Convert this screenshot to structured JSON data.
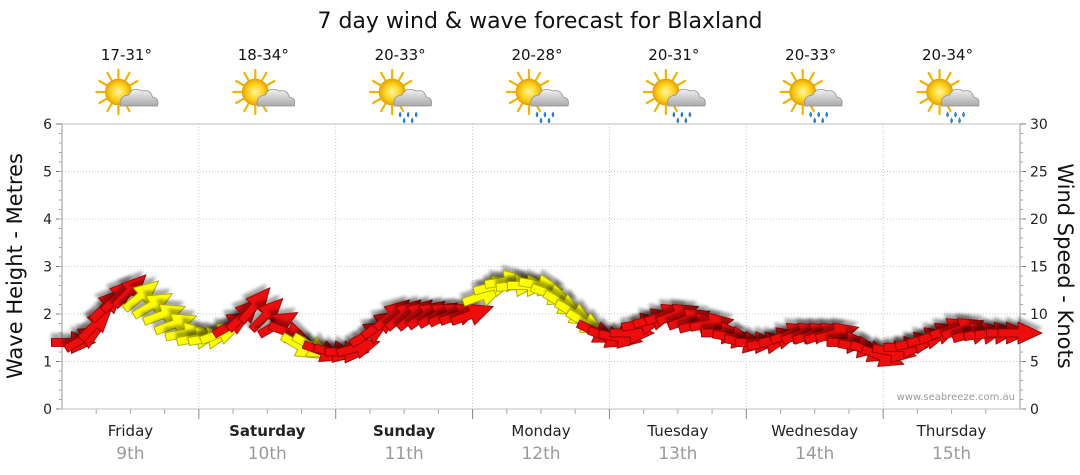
{
  "chart_data": {
    "type": "line",
    "title": "7 day wind & wave forecast for Blaxland",
    "ylabel_left": "Wave Height - Metres",
    "ylabel_right": "Wind Speed - Knots",
    "ylim_left": [
      0,
      6
    ],
    "ylim_right": [
      0,
      30
    ],
    "left_ticks": [
      "0",
      "1",
      "2",
      "3",
      "4",
      "5",
      "6"
    ],
    "right_ticks": [
      "0",
      "5",
      "10",
      "15",
      "20",
      "25",
      "30"
    ],
    "grid": true,
    "watermark": "www.seabreeze.com.au",
    "days": [
      {
        "name": "Friday",
        "date": "9th",
        "bold": false,
        "temp": "17-31°",
        "weather": "partly-cloudy-icon"
      },
      {
        "name": "Saturday",
        "date": "10th",
        "bold": true,
        "temp": "18-34°",
        "weather": "partly-cloudy-icon"
      },
      {
        "name": "Sunday",
        "date": "11th",
        "bold": true,
        "temp": "20-33°",
        "weather": "rain-shower-icon"
      },
      {
        "name": "Monday",
        "date": "12th",
        "bold": false,
        "temp": "20-28°",
        "weather": "rain-shower-icon"
      },
      {
        "name": "Tuesday",
        "date": "13th",
        "bold": false,
        "temp": "20-31°",
        "weather": "rain-shower-icon"
      },
      {
        "name": "Wednesday",
        "date": "14th",
        "bold": false,
        "temp": "20-33°",
        "weather": "rain-shower-icon"
      },
      {
        "name": "Thursday",
        "date": "15th",
        "bold": false,
        "temp": "20-34°",
        "weather": "rain-shower-icon"
      }
    ],
    "arrow_colors": {
      "strong": "#ee1111",
      "light": "#ffff00",
      "outline": "#880000",
      "outline_light": "#999900"
    },
    "wind_series": {
      "name": "wind",
      "day_offset": [
        0,
        0.083,
        0.167,
        0.25,
        0.333,
        0.417,
        0.5,
        0.583,
        0.667,
        0.75,
        0.833,
        0.917,
        1,
        1.083,
        1.167,
        1.25,
        1.333,
        1.417,
        1.5,
        1.583,
        1.667,
        1.75,
        1.833,
        1.917,
        2,
        2.083,
        2.167,
        2.25,
        2.333,
        2.417,
        2.5,
        2.583,
        2.667,
        2.75,
        2.833,
        2.917,
        3,
        3.083,
        3.167,
        3.25,
        3.333,
        3.417,
        3.5,
        3.583,
        3.667,
        3.75,
        3.833,
        3.917,
        4,
        4.083,
        4.167,
        4.25,
        4.333,
        4.417,
        4.5,
        4.583,
        4.667,
        4.75,
        4.833,
        4.917,
        5,
        5.083,
        5.167,
        5.25,
        5.333,
        5.417,
        5.5,
        5.583,
        5.667,
        5.75,
        5.833,
        5.917,
        6,
        6.083,
        6.167,
        6.25,
        6.333,
        6.417,
        6.5,
        6.583,
        6.667,
        6.75,
        6.833,
        6.917
      ],
      "speed_knots": [
        7,
        7.5,
        9,
        11,
        12,
        12.5,
        12,
        11,
        10,
        9,
        8,
        7.5,
        7.5,
        8,
        9,
        10,
        11,
        10,
        9,
        8,
        6.5,
        6.5,
        6,
        6,
        6,
        6.5,
        8,
        9,
        10,
        10,
        10,
        10,
        10,
        10,
        10,
        10,
        12,
        13,
        13.5,
        13,
        13,
        13,
        12,
        11,
        10,
        9,
        8,
        7.5,
        7.5,
        8,
        9,
        9.5,
        10,
        10,
        9.5,
        9,
        9,
        8,
        7.5,
        7,
        7,
        7,
        7.5,
        8,
        8,
        8,
        8,
        8,
        7,
        6.5,
        6,
        5.5,
        6,
        6.5,
        7,
        7.5,
        8,
        8.5,
        8.5,
        8,
        8,
        8,
        8,
        8
      ],
      "direction_deg": [
        90,
        60,
        45,
        45,
        45,
        45,
        50,
        60,
        70,
        70,
        80,
        80,
        80,
        70,
        60,
        45,
        40,
        45,
        60,
        110,
        120,
        120,
        110,
        100,
        90,
        75,
        60,
        55,
        50,
        50,
        50,
        55,
        60,
        65,
        70,
        70,
        70,
        75,
        80,
        85,
        90,
        100,
        110,
        120,
        120,
        120,
        115,
        110,
        100,
        90,
        80,
        75,
        70,
        70,
        70,
        75,
        80,
        90,
        100,
        100,
        90,
        80,
        75,
        70,
        70,
        70,
        70,
        75,
        90,
        100,
        110,
        110,
        100,
        90,
        80,
        75,
        70,
        70,
        70,
        75,
        80,
        85,
        90,
        90
      ],
      "light_range": [
        [
          0.5,
          1.1
        ],
        [
          1.65,
          1.75
        ],
        [
          3,
          3.8
        ]
      ]
    }
  }
}
